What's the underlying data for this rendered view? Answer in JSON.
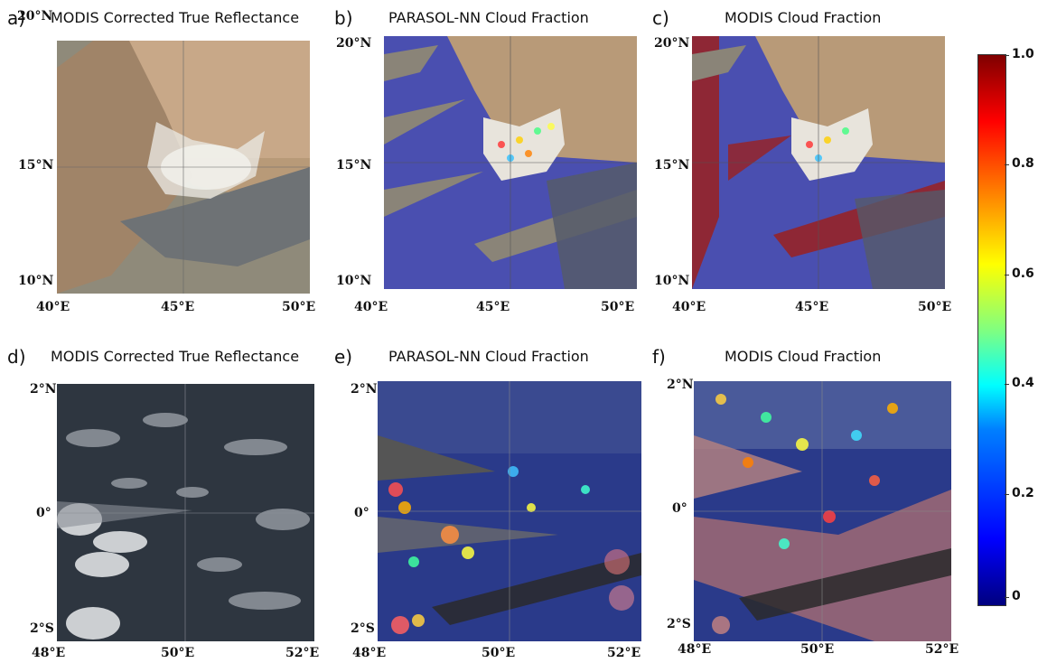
{
  "panels": {
    "a": {
      "letter": "a)",
      "title": "MODIS Corrected True Reflectance",
      "lat": [
        "20°N",
        "15°N",
        "10°N"
      ],
      "lon": [
        "40°E",
        "45°E",
        "50°E"
      ]
    },
    "b": {
      "letter": "b)",
      "title": "PARASOL-NN Cloud Fraction",
      "lat": [
        "20°N",
        "15°N",
        "10°N"
      ],
      "lon": [
        "40°E",
        "45°E",
        "50°E"
      ]
    },
    "c": {
      "letter": "c)",
      "title": "MODIS Cloud Fraction",
      "lat": [
        "20°N",
        "15°N",
        "10°N"
      ],
      "lon": [
        "40°E",
        "45°E",
        "50°E"
      ]
    },
    "d": {
      "letter": "d)",
      "title": "MODIS Corrected True Reflectance",
      "lat": [
        "2°N",
        "0°",
        "2°S"
      ],
      "lon": [
        "48°E",
        "50°E",
        "52°E"
      ]
    },
    "e": {
      "letter": "e)",
      "title": "PARASOL-NN Cloud Fraction",
      "lat": [
        "2°N",
        "0°",
        "2°S"
      ],
      "lon": [
        "48°E",
        "50°E",
        "52°E"
      ]
    },
    "f": {
      "letter": "f)",
      "title": "MODIS Cloud Fraction",
      "lat": [
        "2°N",
        "0°",
        "2°S"
      ],
      "lon": [
        "48°E",
        "50°E",
        "52°E"
      ]
    }
  },
  "colorbar": {
    "ticks": [
      "1.0",
      "0.8",
      "0.6",
      "0.4",
      "0.2",
      "0"
    ],
    "range": [
      0,
      1
    ],
    "colormap": "jet"
  }
}
